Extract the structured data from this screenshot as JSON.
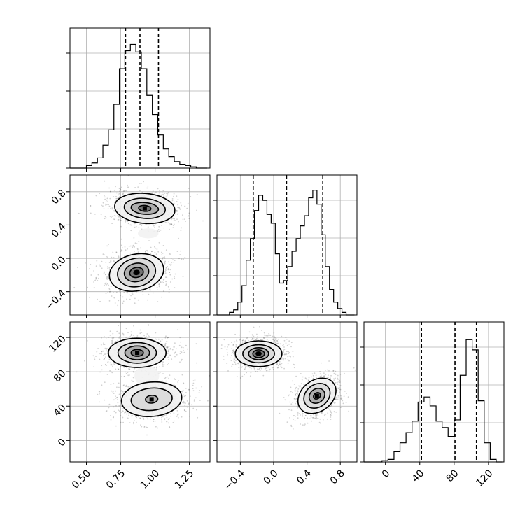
{
  "chart_data": {
    "type": "corner",
    "params": [
      {
        "range": [
          0.38,
          1.4
        ],
        "ticks": [
          0.5,
          0.75,
          1.0,
          1.25
        ],
        "tick_labels": [
          "0.50",
          "0.75",
          "1.00",
          "1.25"
        ],
        "quantiles": [
          0.785,
          0.89,
          1.025
        ]
      },
      {
        "range": [
          -0.68,
          1.0
        ],
        "ticks": [
          -0.4,
          0.0,
          0.4,
          0.8
        ],
        "tick_labels": [
          "−0.4",
          "0.0",
          "0.4",
          "0.8"
        ],
        "quantiles": [
          -0.245,
          0.155,
          0.59
        ]
      },
      {
        "range": [
          -25,
          138
        ],
        "ticks": [
          0,
          40,
          80,
          120
        ],
        "tick_labels": [
          "0",
          "40",
          "80",
          "120"
        ],
        "quantiles": [
          42,
          81,
          106
        ]
      }
    ],
    "histograms": [
      {
        "param": 0,
        "ymax": 1.0,
        "bins": [
          0.38,
          0.42,
          0.46,
          0.5,
          0.54,
          0.58,
          0.62,
          0.66,
          0.7,
          0.74,
          0.78,
          0.82,
          0.86,
          0.9,
          0.94,
          0.98,
          1.02,
          1.06,
          1.1,
          1.14,
          1.18,
          1.22,
          1.26,
          1.3,
          1.34,
          1.38
        ],
        "counts": [
          0.0,
          0.0,
          0.0,
          0.02,
          0.04,
          0.08,
          0.18,
          0.3,
          0.5,
          0.78,
          0.92,
          0.97,
          0.91,
          0.78,
          0.57,
          0.42,
          0.26,
          0.15,
          0.09,
          0.05,
          0.03,
          0.02,
          0.01,
          0.0,
          0.0
        ]
      },
      {
        "param": 1,
        "ymax": 1.0,
        "bins": [
          -0.68,
          -0.63,
          -0.58,
          -0.53,
          -0.48,
          -0.43,
          -0.38,
          -0.33,
          -0.28,
          -0.23,
          -0.18,
          -0.13,
          -0.08,
          -0.03,
          0.02,
          0.07,
          0.12,
          0.17,
          0.22,
          0.27,
          0.32,
          0.37,
          0.42,
          0.47,
          0.52,
          0.57,
          0.62,
          0.67,
          0.72,
          0.77,
          0.82,
          0.87,
          0.92,
          0.97
        ],
        "counts": [
          0.0,
          0.0,
          0.0,
          0.02,
          0.04,
          0.1,
          0.23,
          0.43,
          0.6,
          0.82,
          0.94,
          0.9,
          0.79,
          0.72,
          0.48,
          0.25,
          0.27,
          0.38,
          0.5,
          0.6,
          0.7,
          0.78,
          0.92,
          0.98,
          0.87,
          0.63,
          0.38,
          0.2,
          0.1,
          0.05,
          0.02,
          0.0,
          0.0
        ]
      },
      {
        "param": 2,
        "ymax": 1.0,
        "bins": [
          -25,
          -18,
          -11,
          -4,
          3,
          10,
          17,
          24,
          31,
          38,
          45,
          52,
          59,
          66,
          73,
          80,
          87,
          94,
          101,
          108,
          115,
          122,
          129,
          136
        ],
        "counts": [
          0.0,
          0.0,
          0.0,
          0.01,
          0.02,
          0.08,
          0.15,
          0.23,
          0.32,
          0.47,
          0.51,
          0.44,
          0.32,
          0.27,
          0.2,
          0.33,
          0.68,
          0.96,
          0.88,
          0.48,
          0.15,
          0.02,
          0.0
        ]
      }
    ],
    "joints": [
      {
        "x_param": 0,
        "y_param": 1,
        "modes": [
          {
            "cx": 0.925,
            "cy": 0.6,
            "levels": [
              [
                0.22,
                0.18,
                5
              ],
              [
                0.15,
                0.12,
                5
              ],
              [
                0.1,
                0.07,
                5
              ],
              [
                0.045,
                0.035,
                5
              ]
            ]
          },
          {
            "cx": 0.865,
            "cy": -0.17,
            "levels": [
              [
                0.2,
                0.22,
                -12
              ],
              [
                0.14,
                0.17,
                -12
              ],
              [
                0.09,
                0.11,
                -12
              ],
              [
                0.05,
                0.06,
                -12
              ],
              [
                0.02,
                0.025,
                -12
              ]
            ]
          }
        ],
        "bridge": [
          [
            0.95,
            0.3,
            0.075,
            0.06
          ]
        ]
      },
      {
        "x_param": 0,
        "y_param": 2,
        "modes": [
          {
            "cx": 0.87,
            "cy": 102,
            "levels": [
              [
                0.21,
                17,
                0
              ],
              [
                0.14,
                12,
                0
              ],
              [
                0.09,
                8,
                0
              ],
              [
                0.045,
                4,
                0
              ]
            ]
          },
          {
            "cx": 0.975,
            "cy": 48,
            "levels": [
              [
                0.22,
                20,
                -5
              ],
              [
                0.15,
                13,
                -5
              ],
              [
                0.045,
                4.5,
                -5
              ]
            ]
          }
        ],
        "bridge": [
          [
            0.94,
            75,
            0.09,
            12
          ]
        ]
      },
      {
        "x_param": 1,
        "y_param": 2,
        "modes": [
          {
            "cx": -0.18,
            "cy": 101,
            "levels": [
              [
                0.28,
                15,
                0
              ],
              [
                0.19,
                10.5,
                0
              ],
              [
                0.12,
                7,
                0
              ],
              [
                0.07,
                4.5,
                0
              ],
              [
                0.03,
                2,
                0
              ]
            ]
          },
          {
            "cx": 0.52,
            "cy": 52,
            "levels": [
              [
                0.25,
                18,
                -38
              ],
              [
                0.17,
                13,
                -38
              ],
              [
                0.1,
                8,
                -38
              ],
              [
                0.045,
                3.5,
                -38
              ]
            ]
          }
        ],
        "bridge": []
      }
    ],
    "title": "",
    "grid": true
  }
}
